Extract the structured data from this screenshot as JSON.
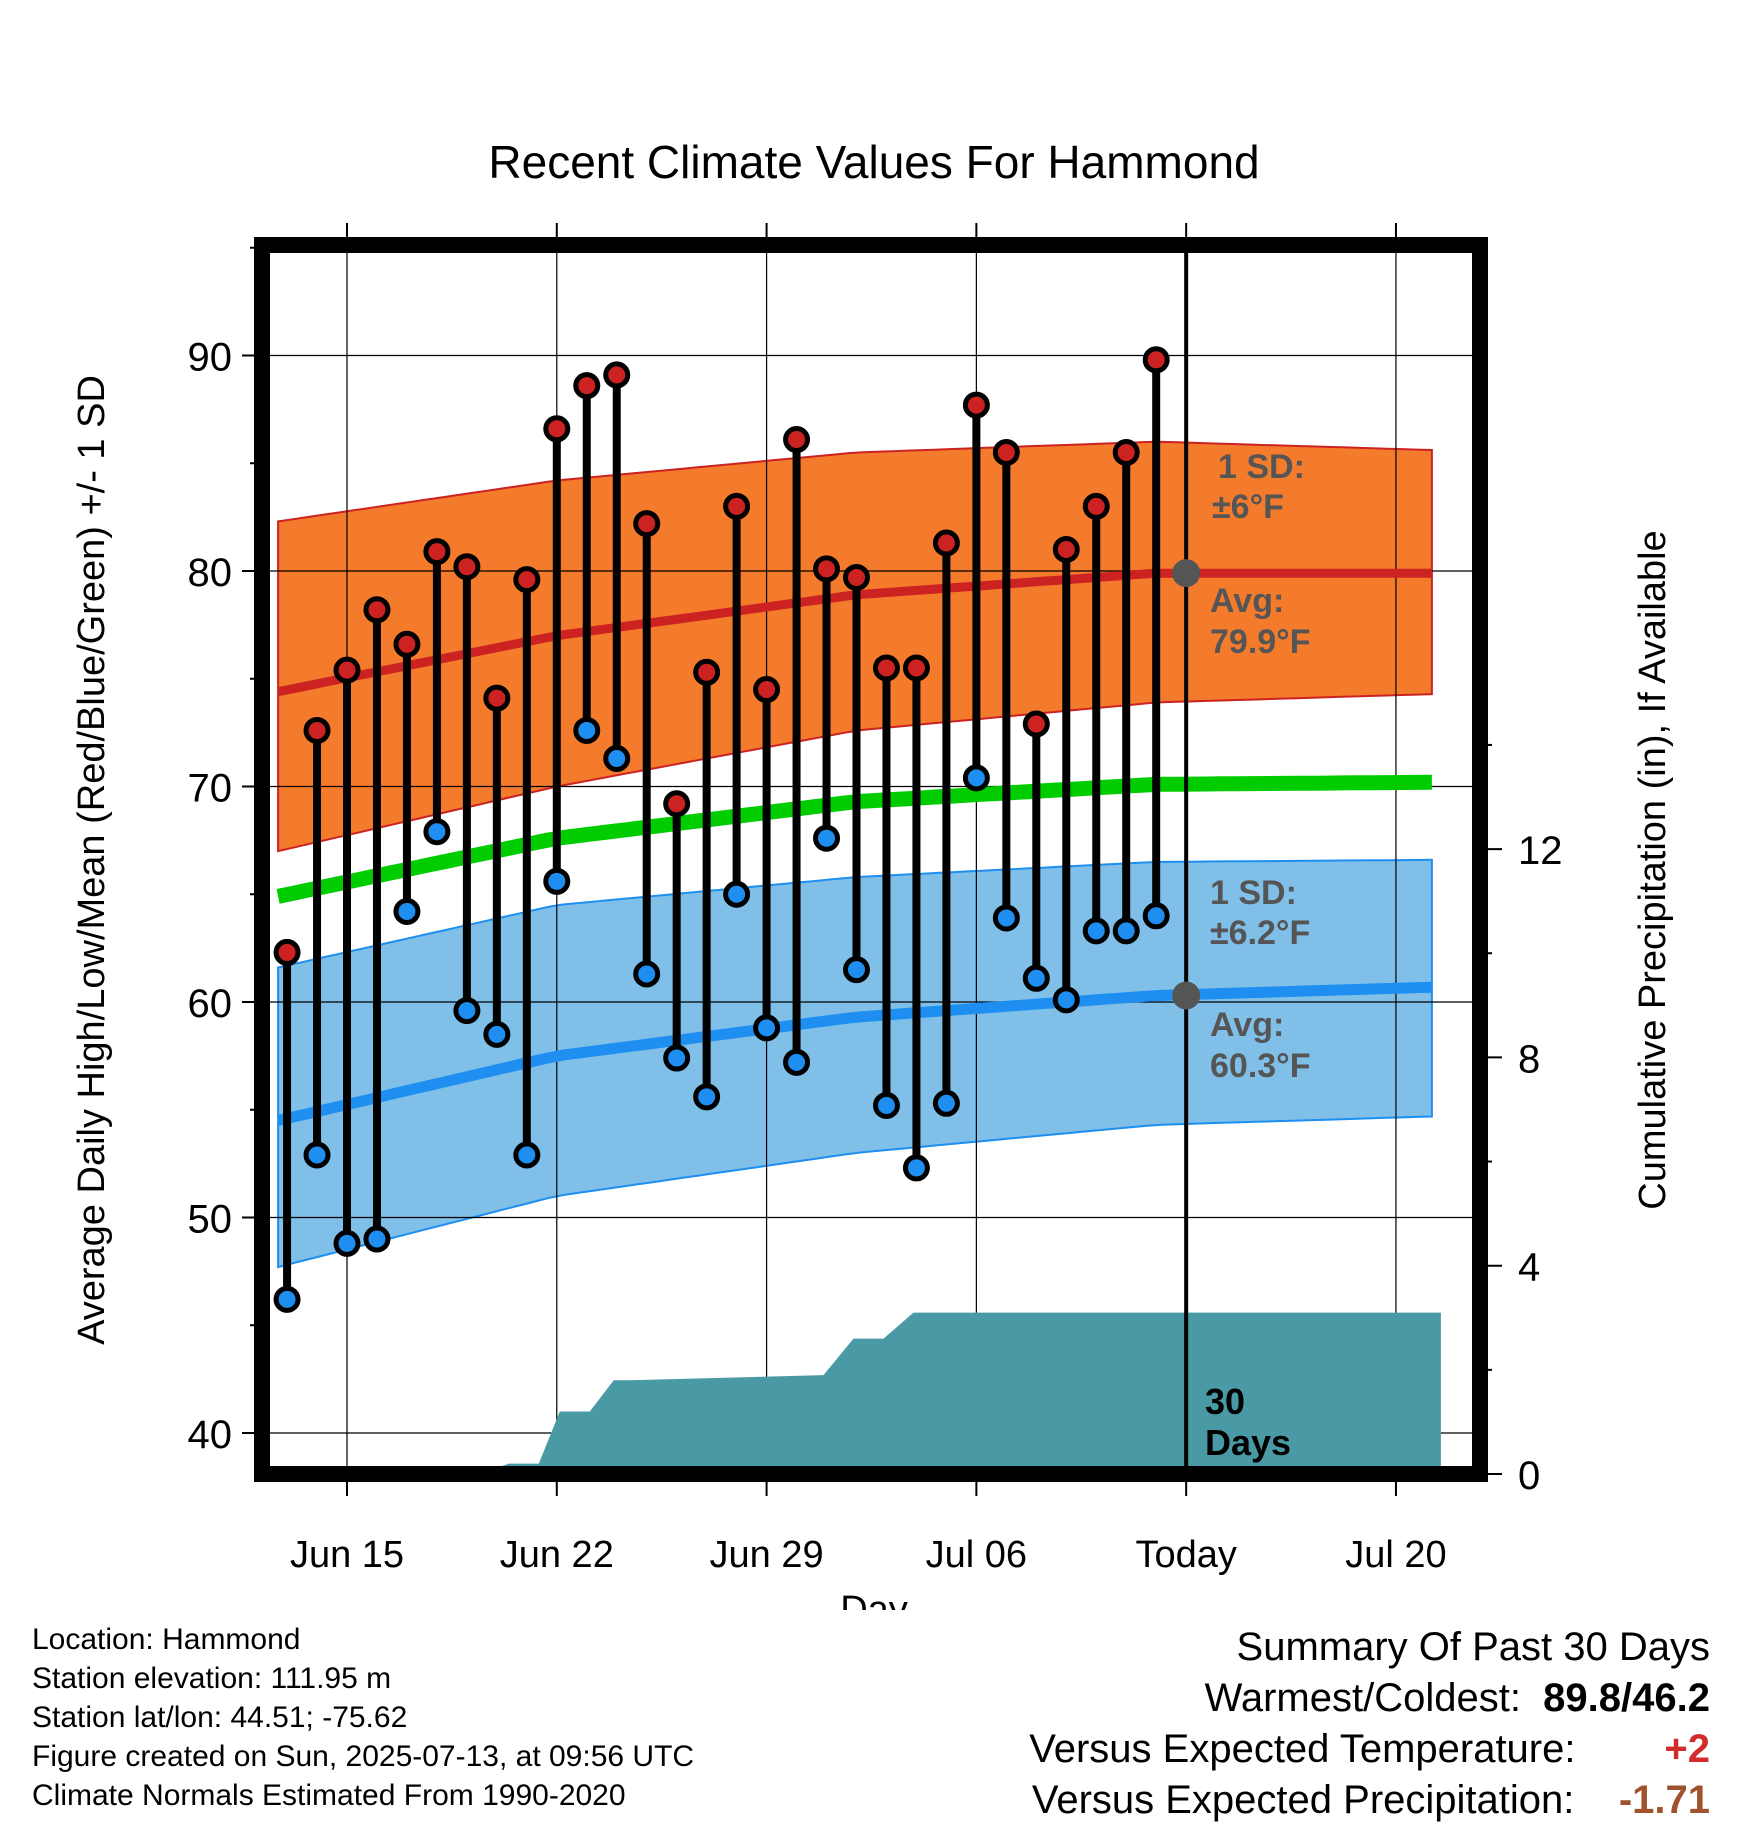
{
  "chart_data": {
    "type": "line",
    "title": "Recent Climate Values For Hammond",
    "xlabel": "Day",
    "ylabel": "Average Daily High/Low/Mean (Red/Blue/Green) +/- 1 SD",
    "y2label": "Cumulative Precipitation (in), If Available",
    "ylim": [
      38.5,
      95
    ],
    "y2lim": [
      0,
      23.6
    ],
    "y_ticks": [
      "40",
      "50",
      "60",
      "70",
      "80",
      "90"
    ],
    "y2_ticks": [
      "0",
      "4",
      "8",
      "12"
    ],
    "x_ticks": [
      "Jun 15",
      "Jun 22",
      "Jun 29",
      "Jul 06",
      "Today",
      "Jul 20"
    ],
    "grid": true,
    "today_label": "30 Days",
    "observed_days": [
      13,
      14,
      15,
      16,
      17,
      18,
      19,
      20,
      21,
      22,
      23,
      24,
      25,
      26,
      27,
      28,
      29,
      30,
      31,
      32,
      33,
      34,
      35,
      36,
      37,
      38,
      39,
      40,
      41,
      42
    ],
    "observed_high": [
      62.3,
      72.6,
      75.4,
      78.2,
      76.6,
      80.9,
      80.2,
      74.1,
      79.6,
      86.6,
      88.6,
      89.1,
      82.2,
      69.2,
      75.3,
      83.0,
      74.5,
      86.1,
      80.1,
      79.7,
      75.5,
      75.5,
      81.3,
      87.7,
      85.5,
      72.9,
      81.0,
      83.0,
      85.5,
      89.8
    ],
    "observed_low": [
      46.2,
      52.9,
      48.8,
      49.0,
      64.2,
      67.9,
      59.6,
      58.5,
      52.9,
      65.6,
      72.6,
      71.3,
      61.3,
      57.4,
      55.6,
      65.0,
      58.8,
      57.2,
      67.6,
      61.5,
      55.2,
      52.3,
      55.3,
      70.4,
      63.9,
      61.1,
      60.1,
      63.3,
      63.3,
      64.0
    ],
    "normal_days": [
      12.7,
      22,
      32,
      42,
      51.5
    ],
    "normal_high": [
      74.4,
      77.0,
      78.9,
      79.9,
      79.9
    ],
    "normal_high_sd_upper": [
      82.3,
      84.2,
      85.5,
      86.0,
      85.6
    ],
    "normal_high_sd_lower": [
      67.0,
      70.0,
      72.6,
      73.9,
      74.3
    ],
    "normal_mean": [
      64.9,
      67.6,
      69.3,
      70.1,
      70.2
    ],
    "normal_low": [
      54.5,
      57.5,
      59.3,
      60.3,
      60.7
    ],
    "normal_low_sd_upper": [
      61.6,
      64.5,
      65.8,
      66.5,
      66.6
    ],
    "normal_low_sd_lower": [
      47.7,
      51.0,
      53.0,
      54.3,
      54.7
    ],
    "precip_days": [
      12.7,
      19.4,
      20.4,
      21.4,
      22.1,
      23.1,
      23.9,
      24.4,
      30.9,
      31.9,
      32.9,
      33.9,
      40.9,
      51.5
    ],
    "precip_cum": [
      0,
      0,
      0.2,
      0.2,
      1.2,
      1.2,
      1.8,
      1.8,
      1.9,
      2.6,
      2.6,
      3.1,
      3.1,
      3.1
    ],
    "high_annotation": {
      "sd_title": "1 SD:",
      "sd_value": "±6°F",
      "avg_title": "Avg:",
      "avg_value": "79.9°F"
    },
    "low_annotation": {
      "sd_title": "1 SD:",
      "sd_value": "±6.2°F",
      "avg_title": "Avg:",
      "avg_value": "60.3°F"
    },
    "colors": {
      "high_band": "#f47b2c",
      "high_line": "#cc2222",
      "mean_line": "#00cc00",
      "low_band": "#80c0e8",
      "low_line": "#1e8ff0",
      "precip": "#4a9aa5",
      "high_marker": "#cc2222",
      "low_marker": "#1e8ff0",
      "annotation": "#555555"
    }
  },
  "footer": {
    "location": "Location: Hammond",
    "elevation": "Station elevation: 111.95 m",
    "latlon": "Station lat/lon: 44.51; -75.62",
    "created": "Figure created on Sun, 2025-07-13, at 09:56 UTC",
    "normals": "Climate Normals Estimated From 1990-2020"
  },
  "summary": {
    "title": "Summary Of Past 30 Days",
    "warm_cold_label": "Warmest/Coldest:",
    "warm_cold_value": "89.8/46.2",
    "temp_label": "Versus Expected Temperature:",
    "temp_value": "+2",
    "precip_label": "Versus Expected Precipitation:",
    "precip_value": "-1.71"
  }
}
